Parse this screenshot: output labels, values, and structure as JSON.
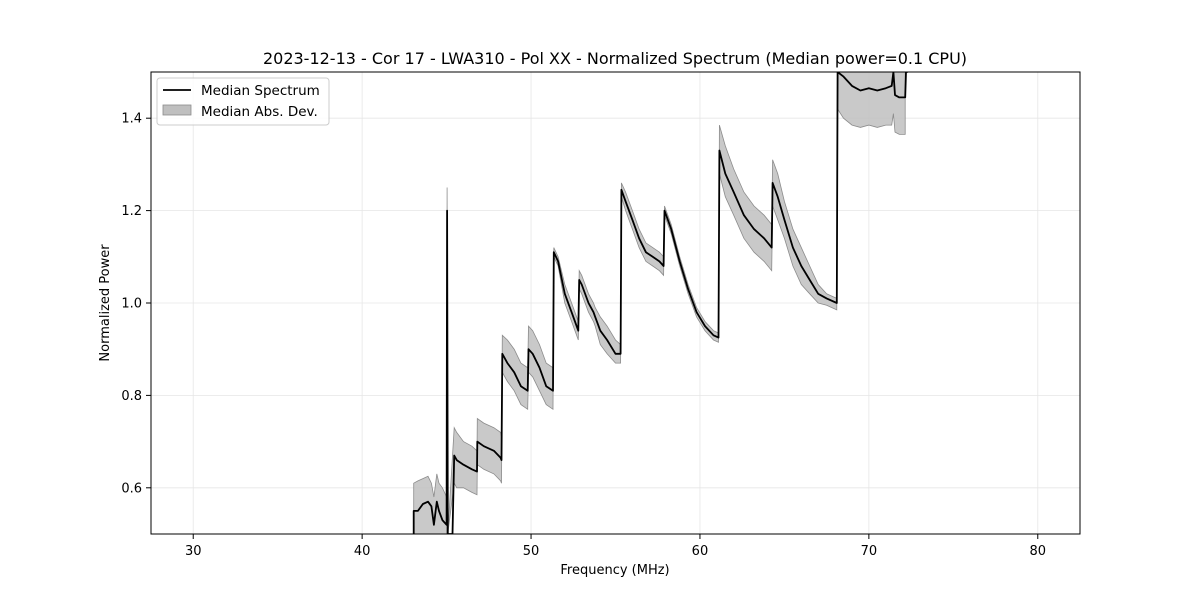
{
  "chart_data": {
    "type": "line",
    "title": "2023-12-13 - Cor 17 - LWA310 - Pol XX - Normalized Spectrum (Median power=0.1 CPU)",
    "xlabel": "Frequency (MHz)",
    "ylabel": "Normalized Power",
    "xlim": [
      27.5,
      82.5
    ],
    "ylim": [
      0.5,
      1.5
    ],
    "xticks": [
      30,
      40,
      50,
      60,
      70,
      80
    ],
    "yticks": [
      0.6,
      0.8,
      1.0,
      1.2,
      1.4
    ],
    "xtick_labels": [
      "30",
      "40",
      "50",
      "60",
      "70",
      "80"
    ],
    "ytick_labels": [
      "0.6",
      "0.8",
      "1.0",
      "1.2",
      "1.4"
    ],
    "grid": true,
    "legend": {
      "location": "upper-left",
      "entries": [
        "Median Spectrum",
        "Median Abs. Dev."
      ]
    },
    "colors": {
      "line": "#000000",
      "band_fill": "#bfbfbf",
      "band_edge": "#8c8c8c",
      "grid": "#e6e6e6"
    },
    "series": [
      {
        "name": "Median Spectrum",
        "x": [
          43.05,
          43.05,
          43.3,
          43.6,
          43.9,
          44.1,
          44.25,
          44.42,
          44.55,
          44.75,
          45.0,
          45.03,
          45.07,
          45.2,
          45.35,
          45.45,
          45.6,
          46.0,
          46.5,
          46.8,
          46.82,
          47.2,
          47.8,
          48.2,
          48.25,
          48.3,
          48.6,
          49.0,
          49.4,
          49.8,
          49.85,
          50.1,
          50.5,
          50.9,
          51.3,
          51.35,
          51.6,
          52.0,
          52.4,
          52.8,
          52.85,
          53.0,
          53.4,
          53.7,
          53.8,
          54.1,
          54.5,
          55.0,
          55.3,
          55.35,
          55.6,
          56.0,
          56.4,
          56.8,
          57.2,
          57.6,
          57.85,
          57.9,
          58.3,
          58.8,
          59.3,
          59.8,
          60.3,
          60.8,
          61.1,
          61.15,
          61.5,
          62.0,
          62.6,
          63.2,
          63.8,
          64.25,
          64.3,
          64.6,
          65.0,
          65.5,
          66.0,
          66.5,
          67.0,
          67.5,
          68.1,
          68.15,
          68.5,
          69.0,
          69.5,
          70.0,
          70.5,
          71.0,
          71.35,
          71.45,
          71.55,
          71.8,
          72.15,
          72.2,
          72.3
        ],
        "values": [
          0.5,
          0.55,
          0.55,
          0.565,
          0.57,
          0.56,
          0.52,
          0.57,
          0.55,
          0.53,
          0.52,
          1.2,
          0.5,
          0.5,
          0.5,
          0.67,
          0.66,
          0.65,
          0.64,
          0.635,
          0.7,
          0.69,
          0.68,
          0.665,
          0.66,
          0.89,
          0.87,
          0.85,
          0.82,
          0.81,
          0.9,
          0.89,
          0.86,
          0.82,
          0.81,
          1.11,
          1.09,
          1.02,
          0.98,
          0.94,
          1.05,
          1.04,
          1.0,
          0.98,
          0.97,
          0.94,
          0.92,
          0.89,
          0.89,
          1.245,
          1.22,
          1.18,
          1.14,
          1.11,
          1.1,
          1.09,
          1.08,
          1.2,
          1.16,
          1.09,
          1.03,
          0.98,
          0.95,
          0.93,
          0.925,
          1.33,
          1.28,
          1.24,
          1.19,
          1.16,
          1.14,
          1.12,
          1.26,
          1.23,
          1.18,
          1.12,
          1.08,
          1.05,
          1.02,
          1.01,
          1.0,
          1.5,
          1.49,
          1.47,
          1.46,
          1.465,
          1.46,
          1.465,
          1.47,
          1.5,
          1.45,
          1.445,
          1.445,
          1.5,
          1.5
        ]
      },
      {
        "name": "Median Abs. Dev.",
        "x": [
          43.05,
          43.3,
          43.6,
          43.9,
          44.1,
          44.25,
          44.42,
          44.55,
          44.75,
          45.0,
          45.03,
          45.07,
          45.45,
          45.6,
          46.0,
          46.5,
          46.8,
          46.82,
          47.2,
          47.8,
          48.2,
          48.25,
          48.3,
          48.6,
          49.0,
          49.4,
          49.8,
          49.85,
          50.1,
          50.5,
          50.9,
          51.3,
          51.35,
          51.6,
          52.0,
          52.4,
          52.8,
          52.85,
          53.0,
          53.4,
          53.7,
          53.8,
          54.1,
          54.5,
          55.0,
          55.3,
          55.35,
          55.6,
          56.0,
          56.4,
          56.8,
          57.2,
          57.6,
          57.85,
          57.9,
          58.3,
          58.8,
          59.3,
          59.8,
          60.3,
          60.8,
          61.1,
          61.15,
          61.5,
          62.0,
          62.6,
          63.2,
          63.8,
          64.25,
          64.3,
          64.6,
          65.0,
          65.5,
          66.0,
          66.5,
          67.0,
          67.5,
          68.1,
          68.15,
          68.5,
          69.0,
          69.5,
          70.0,
          70.5,
          71.0,
          71.35,
          71.45,
          71.55,
          71.8,
          72.15
        ],
        "upper": [
          0.61,
          0.615,
          0.62,
          0.625,
          0.61,
          0.58,
          0.63,
          0.61,
          0.6,
          0.58,
          1.25,
          0.5,
          0.73,
          0.72,
          0.7,
          0.69,
          0.68,
          0.75,
          0.74,
          0.73,
          0.72,
          0.71,
          0.93,
          0.92,
          0.9,
          0.87,
          0.86,
          0.95,
          0.94,
          0.91,
          0.87,
          0.86,
          1.12,
          1.1,
          1.04,
          1.0,
          0.96,
          1.07,
          1.06,
          1.02,
          1.0,
          0.99,
          0.97,
          0.95,
          0.92,
          0.91,
          1.26,
          1.24,
          1.2,
          1.16,
          1.13,
          1.12,
          1.11,
          1.1,
          1.21,
          1.17,
          1.1,
          1.04,
          0.99,
          0.96,
          0.94,
          0.935,
          1.385,
          1.34,
          1.29,
          1.24,
          1.21,
          1.19,
          1.17,
          1.31,
          1.28,
          1.22,
          1.16,
          1.12,
          1.08,
          1.04,
          1.02,
          1.01,
          1.5,
          1.5,
          1.5,
          1.5,
          1.5,
          1.5,
          1.5,
          1.5,
          1.5,
          1.5,
          1.5,
          1.5
        ],
        "lower": [
          0.5,
          0.5,
          0.5,
          0.5,
          0.5,
          0.5,
          0.5,
          0.5,
          0.5,
          0.5,
          1.15,
          0.5,
          0.61,
          0.6,
          0.6,
          0.59,
          0.585,
          0.65,
          0.64,
          0.63,
          0.615,
          0.61,
          0.85,
          0.83,
          0.81,
          0.78,
          0.77,
          0.85,
          0.84,
          0.81,
          0.78,
          0.77,
          1.1,
          1.08,
          1.0,
          0.96,
          0.92,
          1.03,
          1.02,
          0.98,
          0.96,
          0.95,
          0.91,
          0.89,
          0.87,
          0.87,
          1.23,
          1.2,
          1.16,
          1.12,
          1.09,
          1.08,
          1.07,
          1.06,
          1.19,
          1.15,
          1.08,
          1.02,
          0.97,
          0.94,
          0.92,
          0.915,
          1.28,
          1.23,
          1.19,
          1.14,
          1.11,
          1.09,
          1.07,
          1.21,
          1.18,
          1.14,
          1.08,
          1.04,
          1.02,
          1.0,
          0.995,
          0.985,
          1.42,
          1.4,
          1.385,
          1.38,
          1.385,
          1.38,
          1.385,
          1.385,
          1.41,
          1.37,
          1.365,
          1.365
        ]
      }
    ]
  }
}
